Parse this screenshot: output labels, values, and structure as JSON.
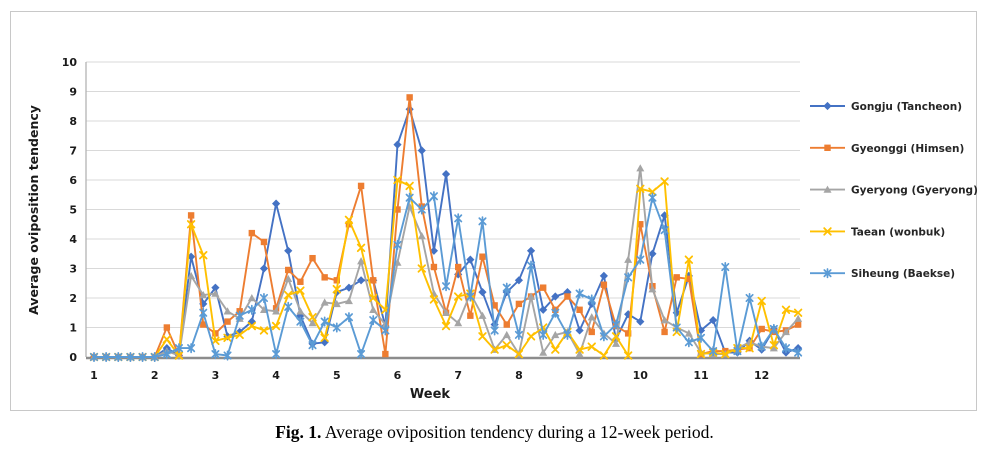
{
  "figure": {
    "caption": {
      "prefix": "Fig. 1.",
      "text": " Average oviposition tendency during a 12-week period."
    }
  },
  "chart": {
    "y_axis": {
      "title": "Average oviposition tendency",
      "ticks": [
        0,
        1,
        2,
        3,
        4,
        5,
        6,
        7,
        8,
        9,
        10
      ]
    },
    "x_axis": {
      "title": "Week",
      "ticks": [
        1,
        2,
        3,
        4,
        5,
        6,
        7,
        8,
        9,
        10,
        11,
        12
      ]
    },
    "style": {
      "gridline_color": "#d9d9d9",
      "y_axis_line_color": "#b3b3b3",
      "x_axis_line_color": "#8c8c8c",
      "frame_color": "#c8c8c8",
      "tick_label_color": "#1a1a1a"
    }
  },
  "chart_data": {
    "type": "line",
    "title": "",
    "xlabel": "Week",
    "ylabel": "Average oviposition tendency",
    "ylim": [
      0,
      10
    ],
    "xlim": [
      1,
      12.6
    ],
    "grid": true,
    "legend_position": "right",
    "x": [
      1,
      1.2,
      1.4,
      1.6,
      1.8,
      2,
      2.2,
      2.4,
      2.6,
      2.8,
      3,
      3.2,
      3.4,
      3.6,
      3.8,
      4,
      4.2,
      4.4,
      4.6,
      4.8,
      5,
      5.2,
      5.4,
      5.6,
      5.8,
      6,
      6.2,
      6.4,
      6.6,
      6.8,
      7,
      7.2,
      7.4,
      7.6,
      7.8,
      8,
      8.2,
      8.4,
      8.6,
      8.8,
      9,
      9.2,
      9.4,
      9.6,
      9.8,
      10,
      10.2,
      10.4,
      10.6,
      10.8,
      11,
      11.2,
      11.4,
      11.6,
      11.8,
      12,
      12.2,
      12.4,
      12.6
    ],
    "series": [
      {
        "name": "Gongju (Tancheon)",
        "color": "#4472C4",
        "marker": "diamond",
        "values": [
          0,
          0,
          0,
          0,
          0,
          0,
          0.3,
          0.05,
          3.4,
          1.8,
          2.35,
          0.7,
          0.85,
          1.2,
          3,
          5.2,
          3.6,
          1.4,
          0.45,
          0.5,
          2.2,
          2.35,
          2.6,
          2.6,
          1.05,
          7.2,
          8.4,
          7,
          3.6,
          6.2,
          2.8,
          3.3,
          2.2,
          1.1,
          2.2,
          2.6,
          3.6,
          1.6,
          2.05,
          2.2,
          0.9,
          1.8,
          2.75,
          0.6,
          1.45,
          1.2,
          3.5,
          4.8,
          1.5,
          2.75,
          0.9,
          1.25,
          0.15,
          0.15,
          0.55,
          0.25,
          0.95,
          0.15,
          0.3
        ]
      },
      {
        "name": "Gyeonggi (Himsen)",
        "color": "#ED7D31",
        "marker": "square",
        "values": [
          0,
          0,
          0,
          0,
          0,
          0,
          1,
          0.05,
          4.8,
          1.1,
          0.8,
          1.2,
          1.55,
          4.2,
          3.9,
          1.65,
          2.95,
          2.55,
          3.35,
          2.7,
          2.6,
          4.5,
          5.8,
          2.6,
          0.1,
          5,
          8.8,
          5.1,
          3.05,
          1.5,
          3.05,
          1.4,
          3.4,
          1.75,
          1.1,
          1.8,
          2.05,
          2.35,
          1.6,
          2.05,
          1.6,
          0.85,
          2.45,
          1.05,
          0.8,
          4.5,
          2.4,
          0.85,
          2.7,
          2.65,
          0.1,
          0.2,
          0.2,
          0.25,
          0.3,
          0.95,
          0.85,
          0.9,
          1.1
        ]
      },
      {
        "name": "Gyeryong (Gyeryong)",
        "color": "#A5A5A5",
        "marker": "triangle",
        "values": [
          0,
          0,
          0,
          0,
          0,
          0,
          0.2,
          0.05,
          2.75,
          2.1,
          2.15,
          1.55,
          1.3,
          2,
          1.6,
          1.55,
          2.65,
          1.55,
          1.15,
          1.85,
          1.8,
          1.9,
          3.25,
          1.6,
          1.1,
          3.2,
          5.1,
          4.1,
          2.15,
          1.5,
          1.15,
          2.15,
          1.4,
          0.25,
          0.75,
          0.1,
          2.05,
          0.15,
          0.75,
          0.85,
          0.1,
          1.35,
          0.8,
          0.45,
          3.3,
          6.4,
          2.3,
          1.25,
          1,
          0.8,
          0.15,
          0.1,
          0.1,
          0.3,
          0.5,
          0.35,
          0.3,
          0.85,
          1.3
        ]
      },
      {
        "name": "Taean (wonbuk)",
        "color": "#FFC000",
        "marker": "x",
        "values": [
          0,
          0,
          0,
          0,
          0,
          0,
          0.6,
          0.05,
          4.5,
          3.45,
          0.55,
          0.65,
          0.75,
          1.05,
          0.9,
          1.05,
          2.1,
          2.25,
          1.35,
          0.65,
          2.3,
          4.65,
          3.7,
          2,
          1.6,
          6,
          5.8,
          3,
          1.95,
          1.05,
          2.05,
          2.15,
          0.7,
          0.25,
          0.4,
          0.1,
          0.7,
          1,
          0.25,
          0.85,
          0.25,
          0.35,
          0.05,
          0.7,
          0.05,
          5.7,
          5.6,
          5.95,
          0.85,
          3.3,
          0.1,
          0.15,
          0.1,
          0.3,
          0.3,
          1.9,
          0.4,
          1.6,
          1.5
        ]
      },
      {
        "name": "Siheung (Baekse)",
        "color": "#5B9BD5",
        "marker": "asterisk",
        "values": [
          0,
          0,
          0,
          0,
          0,
          0,
          0.1,
          0.3,
          0.3,
          1.5,
          0.1,
          0.05,
          1.4,
          1.6,
          2,
          0.1,
          1.7,
          1.2,
          0.4,
          1.2,
          1,
          1.35,
          0.1,
          1.25,
          0.9,
          3.8,
          5.4,
          5,
          5.45,
          2.4,
          4.7,
          2.05,
          4.6,
          0.9,
          2.35,
          0.75,
          3.1,
          0.75,
          1.5,
          0.75,
          2.15,
          1.95,
          0.7,
          1.1,
          2.7,
          3.3,
          5.4,
          4.3,
          1,
          0.5,
          0.65,
          0.2,
          3.05,
          0.2,
          2,
          0.35,
          0.95,
          0.3,
          0.15
        ]
      }
    ]
  }
}
